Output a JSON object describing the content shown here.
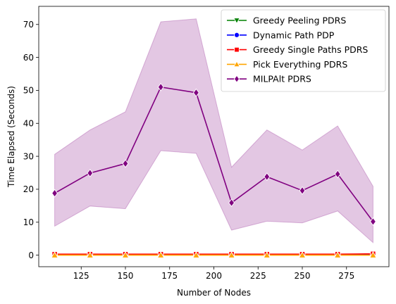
{
  "chart_data": {
    "type": "line",
    "title": "",
    "xlabel": "Number of Nodes",
    "ylabel": "Time Elapsed (Seconds)",
    "xlim": [
      101,
      299
    ],
    "ylim": [
      -3.5,
      75.5
    ],
    "xticks": [
      125,
      150,
      175,
      200,
      225,
      250,
      275
    ],
    "yticks": [
      0,
      10,
      20,
      30,
      40,
      50,
      60,
      70
    ],
    "grid": false,
    "legend_position": "top-right",
    "x": [
      110,
      130,
      150,
      170,
      190,
      210,
      230,
      250,
      270,
      290
    ],
    "series": [
      {
        "name": "Greedy Peeling PDRS",
        "color": "#008000",
        "marker": "triangle-down",
        "values": [
          0.2,
          0.2,
          0.2,
          0.2,
          0.2,
          0.2,
          0.2,
          0.2,
          0.2,
          0.2
        ]
      },
      {
        "name": "Dynamic Path PDP",
        "color": "#0000ff",
        "marker": "circle",
        "values": [
          0.1,
          0.1,
          0.1,
          0.1,
          0.1,
          0.1,
          0.1,
          0.1,
          0.1,
          0.1
        ]
      },
      {
        "name": "Greedy Single Paths PDRS",
        "color": "#ff0000",
        "marker": "square",
        "values": [
          0.3,
          0.3,
          0.3,
          0.3,
          0.3,
          0.3,
          0.3,
          0.3,
          0.3,
          0.4
        ]
      },
      {
        "name": "Pick Everything PDRS",
        "color": "#ffa500",
        "marker": "triangle-up",
        "values": [
          0.0,
          0.0,
          0.0,
          0.0,
          0.0,
          0.0,
          0.0,
          0.0,
          0.0,
          0.0
        ]
      },
      {
        "name": "MILPAlt PDRS",
        "color": "#800080",
        "marker": "diamond",
        "values": [
          18.8,
          24.9,
          27.8,
          51.0,
          49.3,
          15.9,
          23.8,
          19.6,
          24.6,
          10.2
        ],
        "band_upper": [
          30.6,
          38.0,
          43.5,
          70.8,
          71.7,
          26.7,
          38.0,
          31.9,
          39.2,
          20.9
        ],
        "band_lower": [
          8.8,
          14.9,
          14.1,
          31.7,
          30.9,
          7.6,
          10.3,
          9.8,
          13.4,
          3.8
        ]
      }
    ]
  }
}
